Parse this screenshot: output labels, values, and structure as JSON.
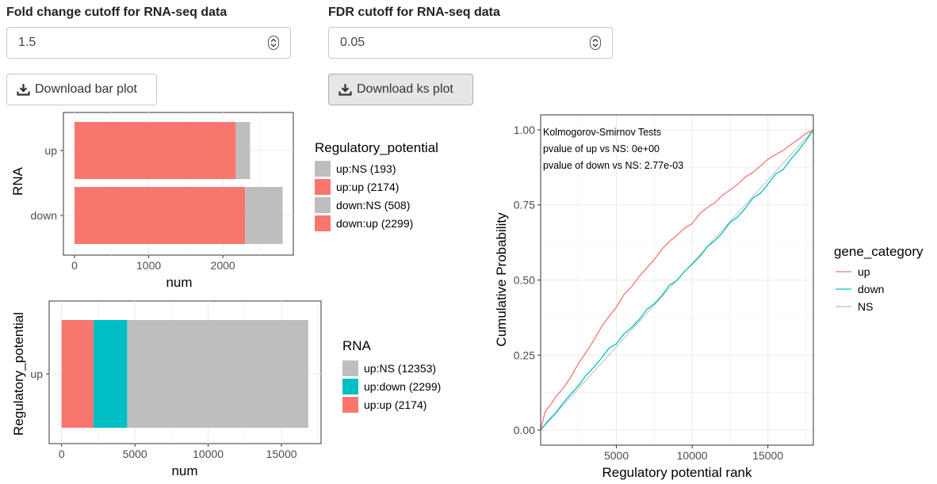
{
  "controls": {
    "fc_label": "Fold change cutoff for RNA-seq data",
    "fc_value": "1.5",
    "fdr_label": "FDR cutoff for RNA-seq data",
    "fdr_value": "0.05",
    "download_bar_label": "Download bar plot",
    "download_ks_label": "Download ks plot",
    "download_icon": "download-icon",
    "spinner_icon": "up-down-spinner-icon"
  },
  "chart_data": [
    {
      "id": "bar1",
      "type": "bar",
      "orientation": "horizontal",
      "stacked": true,
      "categories": [
        "up",
        "down"
      ],
      "segments": [
        {
          "category": "up",
          "key": "up:up",
          "value": 2174,
          "color": "#F8766D"
        },
        {
          "category": "up",
          "key": "up:NS",
          "value": 193,
          "color": "#BEBEBE"
        },
        {
          "category": "down",
          "key": "down:up",
          "value": 2299,
          "color": "#F8766D"
        },
        {
          "category": "down",
          "key": "down:NS",
          "value": 508,
          "color": "#BEBEBE"
        }
      ],
      "xlabel": "num",
      "ylabel": "RNA",
      "xlim": [
        -150,
        2950
      ],
      "xticks": [
        0,
        1000,
        2000
      ],
      "xtick_labels": [
        "0",
        "1000",
        "2000"
      ],
      "grid": true,
      "legend": {
        "title": "Regulatory_potential",
        "position": "right",
        "entries": [
          {
            "label": "up:NS (193)",
            "color": "#BEBEBE"
          },
          {
            "label": "up:up (2174)",
            "color": "#F8766D"
          },
          {
            "label": "down:NS (508)",
            "color": "#BEBEBE"
          },
          {
            "label": "down:up (2299)",
            "color": "#F8766D"
          }
        ]
      }
    },
    {
      "id": "bar2",
      "type": "bar",
      "orientation": "horizontal",
      "stacked": true,
      "categories": [
        "up"
      ],
      "segments": [
        {
          "category": "up",
          "key": "up:up",
          "value": 2174,
          "color": "#F8766D"
        },
        {
          "category": "up",
          "key": "up:down",
          "value": 2299,
          "color": "#00BFC4"
        },
        {
          "category": "up",
          "key": "up:NS",
          "value": 12353,
          "color": "#BEBEBE"
        }
      ],
      "xlabel": "num",
      "ylabel": "Regulatory_potential",
      "xlim": [
        -850,
        17700
      ],
      "xticks": [
        0,
        5000,
        10000,
        15000
      ],
      "xtick_labels": [
        "0",
        "5000",
        "10000",
        "15000"
      ],
      "grid": true,
      "legend": {
        "title": "RNA",
        "position": "right",
        "entries": [
          {
            "label": "up:NS (12353)",
            "color": "#BEBEBE"
          },
          {
            "label": "up:down (2299)",
            "color": "#00BFC4"
          },
          {
            "label": "up:up (2174)",
            "color": "#F8766D"
          }
        ]
      }
    },
    {
      "id": "ks",
      "type": "line",
      "xlabel": "Regulatory potential rank",
      "ylabel": "Cumulative Probability",
      "xlim": [
        0,
        18000
      ],
      "ylim": [
        -0.05,
        1.05
      ],
      "xticks": [
        5000,
        10000,
        15000
      ],
      "xtick_labels": [
        "5000",
        "10000",
        "15000"
      ],
      "yticks": [
        0,
        0.25,
        0.5,
        0.75,
        1.0
      ],
      "ytick_labels": [
        "0.00",
        "0.25",
        "0.50",
        "0.75",
        "1.00"
      ],
      "grid": true,
      "annotations": [
        "Kolmogorov-Smirnov Tests",
        "pvalue of up vs NS: 0e+00",
        "pvalue of down vs NS: 2.77e-03"
      ],
      "series": [
        {
          "name": "up",
          "color": "#F8766D",
          "x": [
            0,
            300,
            700,
            1000,
            1500,
            2000,
            2500,
            3000,
            3500,
            4000,
            4500,
            5000,
            5500,
            6000,
            6500,
            7000,
            7500,
            8000,
            8500,
            9000,
            9500,
            10000,
            10500,
            11000,
            11500,
            12000,
            12500,
            13000,
            13500,
            14000,
            14500,
            15000,
            15500,
            16000,
            16500,
            17000,
            17500,
            18000
          ],
          "y": [
            0,
            0.06,
            0.09,
            0.11,
            0.14,
            0.18,
            0.22,
            0.26,
            0.3,
            0.34,
            0.38,
            0.41,
            0.45,
            0.48,
            0.51,
            0.54,
            0.57,
            0.6,
            0.63,
            0.65,
            0.67,
            0.69,
            0.72,
            0.74,
            0.76,
            0.78,
            0.8,
            0.82,
            0.84,
            0.86,
            0.88,
            0.9,
            0.92,
            0.93,
            0.95,
            0.97,
            0.985,
            1.0
          ]
        },
        {
          "name": "down",
          "color": "#00BFC4",
          "x": [
            0,
            500,
            1000,
            1500,
            2000,
            2500,
            3000,
            3500,
            4000,
            4500,
            5000,
            5500,
            6000,
            6500,
            7000,
            7500,
            8000,
            8500,
            9000,
            9500,
            10000,
            10500,
            11000,
            11500,
            12000,
            12500,
            13000,
            13500,
            14000,
            14500,
            15000,
            15500,
            16000,
            16500,
            17000,
            17500,
            18000
          ],
          "y": [
            0,
            0.03,
            0.06,
            0.09,
            0.12,
            0.15,
            0.18,
            0.21,
            0.24,
            0.27,
            0.29,
            0.32,
            0.34,
            0.37,
            0.4,
            0.42,
            0.45,
            0.48,
            0.5,
            0.53,
            0.55,
            0.58,
            0.61,
            0.63,
            0.66,
            0.69,
            0.71,
            0.74,
            0.77,
            0.79,
            0.82,
            0.85,
            0.87,
            0.9,
            0.93,
            0.965,
            1.0
          ]
        },
        {
          "name": "NS",
          "color": "#BEBEBE",
          "x": [
            0,
            18000
          ],
          "y": [
            0,
            1.0
          ]
        }
      ],
      "legend": {
        "title": "gene_category",
        "position": "right"
      }
    }
  ]
}
